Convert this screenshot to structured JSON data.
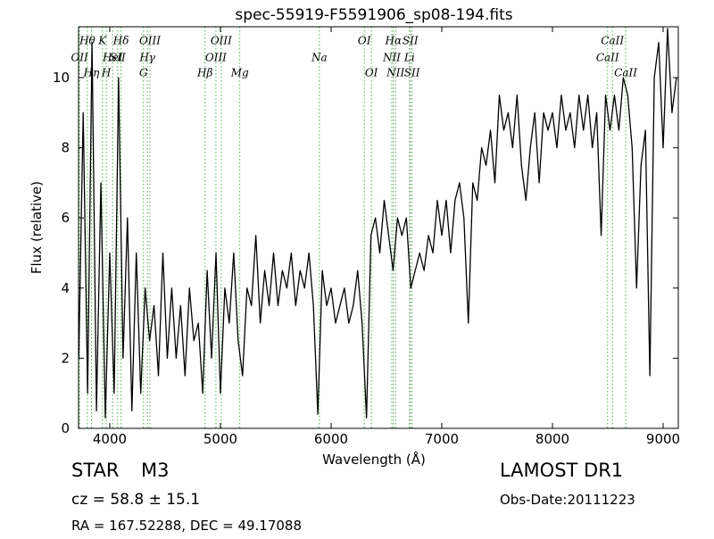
{
  "chart_data": {
    "type": "line",
    "title": "spec-55919-F5591906_sp08-194.fits",
    "x_label": "Wavelength (Å)",
    "y_label": "Flux (relative)",
    "xlim": [
      3718,
      9137
    ],
    "ylim": [
      0,
      11.45
    ],
    "xticks": [
      4000,
      5000,
      6000,
      7000,
      8000,
      9000
    ],
    "yticks": [
      0,
      2,
      4,
      6,
      8,
      10
    ],
    "color": "#000000",
    "line_color": "#55aa55",
    "x": [
      3720,
      3760,
      3800,
      3840,
      3880,
      3920,
      3960,
      4000,
      4040,
      4080,
      4120,
      4160,
      4200,
      4240,
      4280,
      4320,
      4360,
      4400,
      4440,
      4480,
      4520,
      4560,
      4600,
      4640,
      4680,
      4720,
      4760,
      4800,
      4840,
      4880,
      4920,
      4960,
      5000,
      5040,
      5080,
      5120,
      5160,
      5200,
      5240,
      5280,
      5320,
      5360,
      5400,
      5440,
      5480,
      5520,
      5560,
      5600,
      5640,
      5680,
      5720,
      5760,
      5800,
      5840,
      5880,
      5920,
      5960,
      6000,
      6040,
      6080,
      6120,
      6160,
      6200,
      6240,
      6280,
      6320,
      6360,
      6400,
      6440,
      6480,
      6520,
      6560,
      6600,
      6640,
      6680,
      6720,
      6760,
      6800,
      6840,
      6880,
      6920,
      6960,
      7000,
      7040,
      7080,
      7120,
      7160,
      7200,
      7240,
      7280,
      7320,
      7360,
      7400,
      7440,
      7480,
      7520,
      7560,
      7600,
      7640,
      7680,
      7720,
      7760,
      7800,
      7840,
      7880,
      7920,
      7960,
      8000,
      8040,
      8080,
      8120,
      8160,
      8200,
      8240,
      8280,
      8320,
      8360,
      8400,
      8440,
      8480,
      8520,
      8560,
      8600,
      8640,
      8680,
      8720,
      8760,
      8800,
      8840,
      8880,
      8920,
      8960,
      9000,
      9040,
      9080,
      9120
    ],
    "values": [
      2,
      9,
      1,
      11,
      0.5,
      7,
      0.3,
      5,
      1,
      10,
      2,
      6,
      0.5,
      5,
      1,
      4,
      2.5,
      3.5,
      1.5,
      5,
      2,
      4,
      2,
      3.5,
      1.5,
      4,
      2.5,
      3,
      1,
      4.5,
      2,
      5,
      1,
      4,
      3,
      5,
      2.5,
      1.5,
      4,
      3.5,
      5.5,
      3,
      4.5,
      3.5,
      5,
      3.5,
      4.5,
      4,
      5,
      3.5,
      4.5,
      4,
      5,
      3.5,
      0.4,
      4.5,
      3.5,
      4,
      3,
      3.5,
      4,
      3,
      3.5,
      4.5,
      3,
      0.3,
      5.5,
      6,
      5,
      6.5,
      5.5,
      4.5,
      6,
      5.5,
      6,
      4,
      4.5,
      5,
      4.5,
      5.5,
      5,
      6.5,
      5.5,
      6.5,
      5,
      6.5,
      7,
      6,
      3,
      7,
      6.5,
      8,
      7.5,
      8.5,
      7,
      9.5,
      8.5,
      9,
      8,
      9.5,
      7.5,
      6.5,
      8,
      9,
      7,
      9,
      8.5,
      9,
      8,
      9.5,
      8.5,
      9,
      8,
      9.5,
      8.5,
      9.5,
      8,
      9,
      5.5,
      9.5,
      8.5,
      9.5,
      8.5,
      10,
      9.5,
      8,
      4,
      7.5,
      8.5,
      1.5,
      10,
      11,
      8,
      11.4,
      9,
      10
    ],
    "lines": [
      {
        "label": "OII",
        "x": 3727
      },
      {
        "label": "Hθ",
        "x": 3798
      },
      {
        "label": "Hη",
        "x": 3835
      },
      {
        "label": "K",
        "x": 3934
      },
      {
        "label": "HeI",
        "x": 4026
      },
      {
        "label": "H",
        "x": 3969
      },
      {
        "label": "SII",
        "x": 4072
      },
      {
        "label": "Hδ",
        "x": 4102
      },
      {
        "label": "G",
        "x": 4305
      },
      {
        "label": "Hγ",
        "x": 4340
      },
      {
        "label": "OIII",
        "x": 4363
      },
      {
        "label": "Hβ",
        "x": 4861
      },
      {
        "label": "OIII",
        "x": 4959
      },
      {
        "label": "OIII",
        "x": 5007
      },
      {
        "label": "Mg",
        "x": 5175
      },
      {
        "label": "Na",
        "x": 5894
      },
      {
        "label": "OI",
        "x": 6300
      },
      {
        "label": "OI",
        "x": 6364
      },
      {
        "label": "NII",
        "x": 6548
      },
      {
        "label": "Hα",
        "x": 6563
      },
      {
        "label": "NII",
        "x": 6583
      },
      {
        "label": "Li",
        "x": 6708
      },
      {
        "label": "SII",
        "x": 6716
      },
      {
        "label": "SII",
        "x": 6731
      },
      {
        "label": "CaII",
        "x": 8498
      },
      {
        "label": "CaII",
        "x": 8542
      },
      {
        "label": "CaII",
        "x": 8662
      }
    ],
    "annotations": {
      "object_class": "STAR",
      "subclass": "M3",
      "redshift": "cz = 58.8 ± 15.1",
      "coords": "RA = 167.52288, DEC = 49.17088",
      "survey": "LAMOST DR1",
      "obs_date": "Obs-Date:20111223"
    }
  }
}
